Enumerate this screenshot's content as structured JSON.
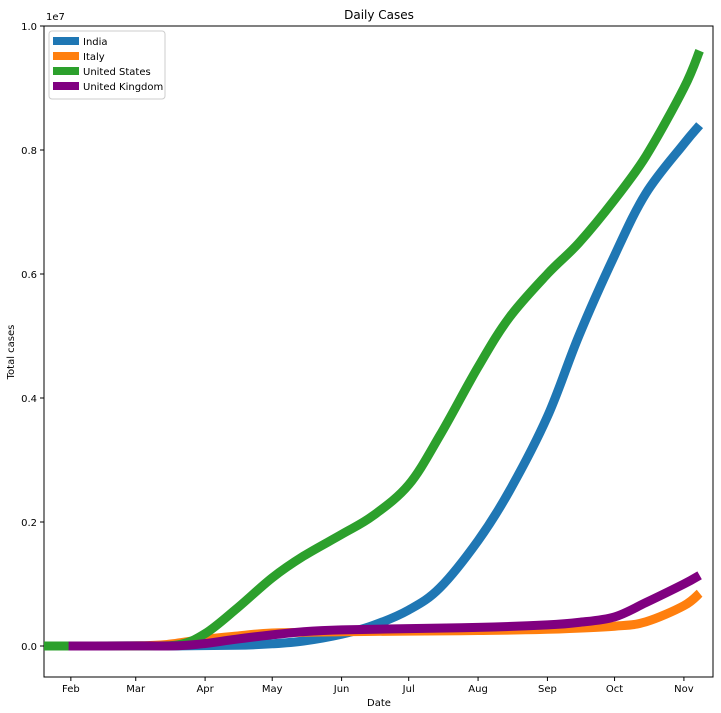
{
  "chart_data": {
    "type": "line",
    "title": "Daily Cases",
    "xlabel": "Date",
    "ylabel": "Total cases",
    "y_offset_label": "1e7",
    "x_domain": [
      "2020-01-20",
      "2020-11-14"
    ],
    "ylim": [
      -0.05,
      1.0
    ],
    "y_scale_note": "values in units of 1e7",
    "x_ticks": [
      {
        "date": "2020-02-01",
        "label": "Feb"
      },
      {
        "date": "2020-03-01",
        "label": "Mar"
      },
      {
        "date": "2020-04-01",
        "label": "Apr"
      },
      {
        "date": "2020-05-01",
        "label": "May"
      },
      {
        "date": "2020-06-01",
        "label": "Jun"
      },
      {
        "date": "2020-07-01",
        "label": "Jul"
      },
      {
        "date": "2020-08-01",
        "label": "Aug"
      },
      {
        "date": "2020-09-01",
        "label": "Sep"
      },
      {
        "date": "2020-10-01",
        "label": "Oct"
      },
      {
        "date": "2020-11-01",
        "label": "Nov"
      }
    ],
    "y_ticks": [
      {
        "value": 0.0,
        "label": "0.0"
      },
      {
        "value": 0.2,
        "label": "0.2"
      },
      {
        "value": 0.4,
        "label": "0.4"
      },
      {
        "value": 0.6,
        "label": "0.6"
      },
      {
        "value": 0.8,
        "label": "0.8"
      },
      {
        "value": 1.0,
        "label": "1.0"
      }
    ],
    "grid": false,
    "legend_position": "top-left",
    "series": [
      {
        "name": "India",
        "color": "#1f77b4",
        "points": [
          [
            "2020-01-30",
            0.0
          ],
          [
            "2020-03-15",
            0.0
          ],
          [
            "2020-04-15",
            0.0012
          ],
          [
            "2020-05-01",
            0.0035
          ],
          [
            "2020-05-15",
            0.008
          ],
          [
            "2020-06-01",
            0.019
          ],
          [
            "2020-06-15",
            0.033
          ],
          [
            "2020-07-01",
            0.058
          ],
          [
            "2020-07-15",
            0.094
          ],
          [
            "2020-08-01",
            0.17
          ],
          [
            "2020-08-15",
            0.25
          ],
          [
            "2020-09-01",
            0.37
          ],
          [
            "2020-09-15",
            0.5
          ],
          [
            "2020-10-01",
            0.63
          ],
          [
            "2020-10-15",
            0.73
          ],
          [
            "2020-11-01",
            0.81
          ],
          [
            "2020-11-08",
            0.84
          ]
        ]
      },
      {
        "name": "Italy",
        "color": "#ff7f0e",
        "points": [
          [
            "2020-01-31",
            0.0
          ],
          [
            "2020-03-01",
            0.0001
          ],
          [
            "2020-03-15",
            0.0025
          ],
          [
            "2020-04-01",
            0.011
          ],
          [
            "2020-04-15",
            0.016
          ],
          [
            "2020-05-01",
            0.021
          ],
          [
            "2020-06-01",
            0.023
          ],
          [
            "2020-07-01",
            0.024
          ],
          [
            "2020-08-01",
            0.025
          ],
          [
            "2020-09-01",
            0.027
          ],
          [
            "2020-10-01",
            0.032
          ],
          [
            "2020-10-15",
            0.039
          ],
          [
            "2020-11-01",
            0.065
          ],
          [
            "2020-11-08",
            0.085
          ]
        ]
      },
      {
        "name": "United States",
        "color": "#2ca02c",
        "points": [
          [
            "2020-01-20",
            0.0
          ],
          [
            "2020-03-01",
            0.0001
          ],
          [
            "2020-03-20",
            0.002
          ],
          [
            "2020-04-01",
            0.02
          ],
          [
            "2020-04-15",
            0.06
          ],
          [
            "2020-05-01",
            0.11
          ],
          [
            "2020-05-15",
            0.145
          ],
          [
            "2020-06-01",
            0.18
          ],
          [
            "2020-06-15",
            0.21
          ],
          [
            "2020-07-01",
            0.26
          ],
          [
            "2020-07-15",
            0.34
          ],
          [
            "2020-08-01",
            0.45
          ],
          [
            "2020-08-15",
            0.53
          ],
          [
            "2020-09-01",
            0.6
          ],
          [
            "2020-09-15",
            0.65
          ],
          [
            "2020-10-01",
            0.72
          ],
          [
            "2020-10-15",
            0.79
          ],
          [
            "2020-11-01",
            0.9
          ],
          [
            "2020-11-08",
            0.96
          ]
        ]
      },
      {
        "name": "United Kingdom",
        "color": "#800080",
        "points": [
          [
            "2020-01-31",
            0.0
          ],
          [
            "2020-03-01",
            0.0001
          ],
          [
            "2020-03-20",
            0.0005
          ],
          [
            "2020-04-01",
            0.004
          ],
          [
            "2020-04-15",
            0.011
          ],
          [
            "2020-05-01",
            0.018
          ],
          [
            "2020-05-15",
            0.023
          ],
          [
            "2020-06-01",
            0.026
          ],
          [
            "2020-07-01",
            0.028
          ],
          [
            "2020-08-01",
            0.03
          ],
          [
            "2020-09-01",
            0.034
          ],
          [
            "2020-09-15",
            0.038
          ],
          [
            "2020-10-01",
            0.047
          ],
          [
            "2020-10-15",
            0.07
          ],
          [
            "2020-11-01",
            0.1
          ],
          [
            "2020-11-08",
            0.114
          ]
        ]
      }
    ]
  }
}
